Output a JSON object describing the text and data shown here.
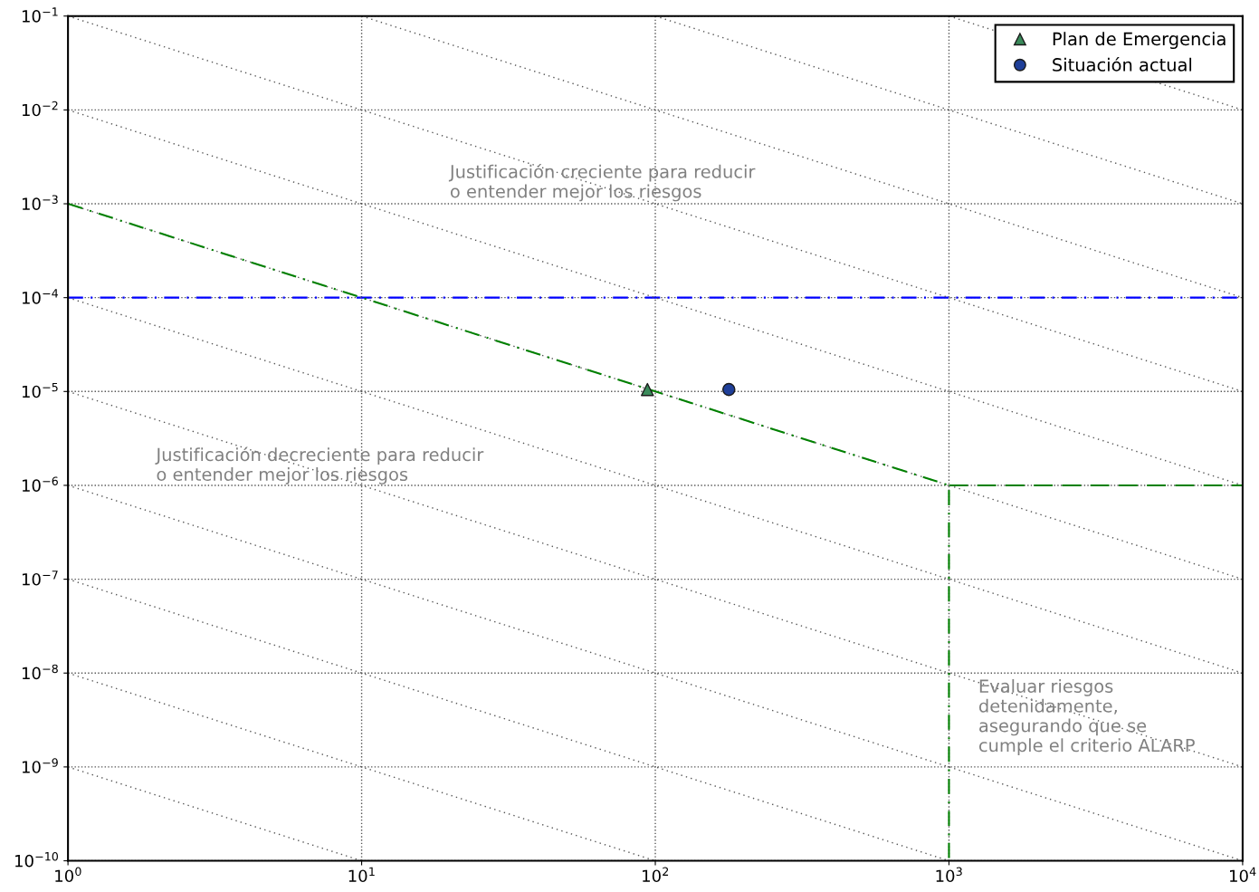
{
  "chart_data": {
    "type": "scatter",
    "log": "xy",
    "xlim": [
      1,
      10000
    ],
    "ylim": [
      1e-10,
      0.1
    ],
    "xticks": [
      {
        "value": 1,
        "label": "10$^{0}$"
      },
      {
        "value": 10,
        "label": "10$^{1}$"
      },
      {
        "value": 100,
        "label": "10$^{2}$"
      },
      {
        "value": 1000,
        "label": "10$^{3}$"
      },
      {
        "value": 10000,
        "label": "10$^{4}$"
      }
    ],
    "yticks": [
      {
        "value": 1e-10,
        "label": "10$^{−10}$"
      },
      {
        "value": 1e-09,
        "label": "10$^{−9}$"
      },
      {
        "value": 1e-08,
        "label": "10$^{−8}$"
      },
      {
        "value": 1e-07,
        "label": "10$^{−7}$"
      },
      {
        "value": 1e-06,
        "label": "10$^{−6}$"
      },
      {
        "value": 1e-05,
        "label": "10$^{−5}$"
      },
      {
        "value": 0.0001,
        "label": "10$^{−4}$"
      },
      {
        "value": 0.001,
        "label": "10$^{−3}$"
      },
      {
        "value": 0.01,
        "label": "10$^{−2}$"
      },
      {
        "value": 0.1,
        "label": "10$^{−1}$"
      }
    ],
    "grid": true,
    "legend": "top right",
    "ref_lines": [
      {
        "axis": "y",
        "value": 0.0001,
        "color": "#0000ff",
        "line_style": "dashdot"
      }
    ],
    "series": [
      {
        "type": "line",
        "color": "#555555",
        "line_style": "dotted",
        "x": [
          1,
          10
        ],
        "values": [
          1e-09,
          1e-10
        ]
      },
      {
        "type": "line",
        "color": "#555555",
        "line_style": "dotted",
        "x": [
          1,
          100
        ],
        "values": [
          1e-08,
          1e-10
        ]
      },
      {
        "type": "line",
        "color": "#555555",
        "line_style": "dotted",
        "x": [
          1,
          1000
        ],
        "values": [
          1e-07,
          1e-10
        ]
      },
      {
        "type": "line",
        "color": "#555555",
        "line_style": "dotted",
        "x": [
          1,
          10000
        ],
        "values": [
          1e-06,
          1e-10
        ]
      },
      {
        "type": "line",
        "color": "#555555",
        "line_style": "dotted",
        "x": [
          1,
          10000
        ],
        "values": [
          1e-05,
          1e-09
        ]
      },
      {
        "type": "line",
        "color": "#555555",
        "line_style": "dotted",
        "x": [
          1,
          10000
        ],
        "values": [
          0.0001,
          1e-08
        ]
      },
      {
        "type": "line",
        "color": "#555555",
        "line_style": "dotted",
        "x": [
          1,
          10000
        ],
        "values": [
          0.001,
          1e-07
        ]
      },
      {
        "type": "line",
        "color": "#555555",
        "line_style": "dotted",
        "x": [
          1,
          10000
        ],
        "values": [
          0.01,
          1e-06
        ]
      },
      {
        "type": "line",
        "color": "#555555",
        "line_style": "dotted",
        "x": [
          1,
          10000
        ],
        "values": [
          0.1,
          1e-05
        ]
      },
      {
        "type": "line",
        "color": "#555555",
        "line_style": "dotted",
        "x": [
          10,
          10000
        ],
        "values": [
          0.1,
          0.0001
        ]
      },
      {
        "type": "line",
        "color": "#555555",
        "line_style": "dotted",
        "x": [
          100,
          10000
        ],
        "values": [
          0.1,
          0.001
        ]
      },
      {
        "type": "line",
        "color": "#555555",
        "line_style": "dotted",
        "x": [
          1000,
          10000
        ],
        "values": [
          0.1,
          0.01
        ]
      },
      {
        "type": "line",
        "color": "#008000",
        "line_style": "dashdot",
        "x": [
          1,
          1000,
          1000
        ],
        "values": [
          0.001,
          1e-06,
          1e-10
        ]
      },
      {
        "type": "line",
        "color": "#008000",
        "line_style": "dashed",
        "x": [
          1000,
          10000
        ],
        "values": [
          1e-06,
          1e-06
        ]
      },
      {
        "name": "Plan de Emergencia",
        "color": "#3a8a5a",
        "marker": "triangle",
        "x": [
          94
        ],
        "values": [
          1.05e-05
        ]
      },
      {
        "name": "Situación actual",
        "color": "#1f3f99",
        "marker": "circle",
        "x": [
          178
        ],
        "values": [
          1.05e-05
        ]
      }
    ],
    "annotations": [
      "Justificación creciente para reducir\no entender mejor los riesgos",
      "Justificación decreciente para reducir\no entender mejor los riesgos",
      "Evaluar riesgos\ndetenidamente,\nasegurando que se\ncumple el criterio ALARP"
    ]
  }
}
